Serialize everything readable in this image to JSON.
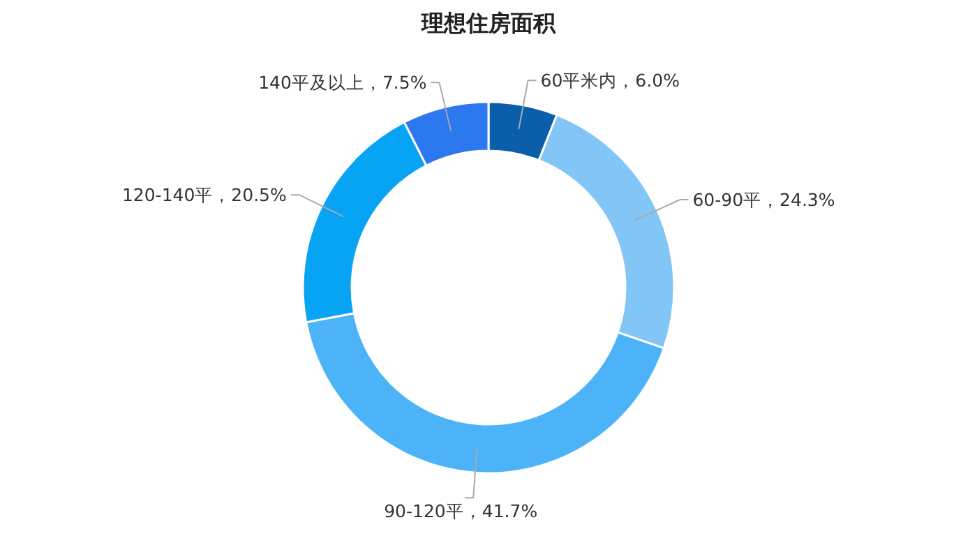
{
  "chart_data": {
    "type": "donut",
    "title": "理想住房面积",
    "categories": [
      "60平米内",
      "60-90平",
      "90-120平",
      "120-140平",
      "140平及以上"
    ],
    "values": [
      6.0,
      24.3,
      41.7,
      20.5,
      7.5
    ],
    "value_labels": [
      "6.0%",
      "24.3%",
      "41.7%",
      "20.5%",
      "7.5%"
    ],
    "colors": [
      "#0a5eaa",
      "#82c5f7",
      "#4db3f9",
      "#08a4f4",
      "#2c78ee"
    ]
  }
}
